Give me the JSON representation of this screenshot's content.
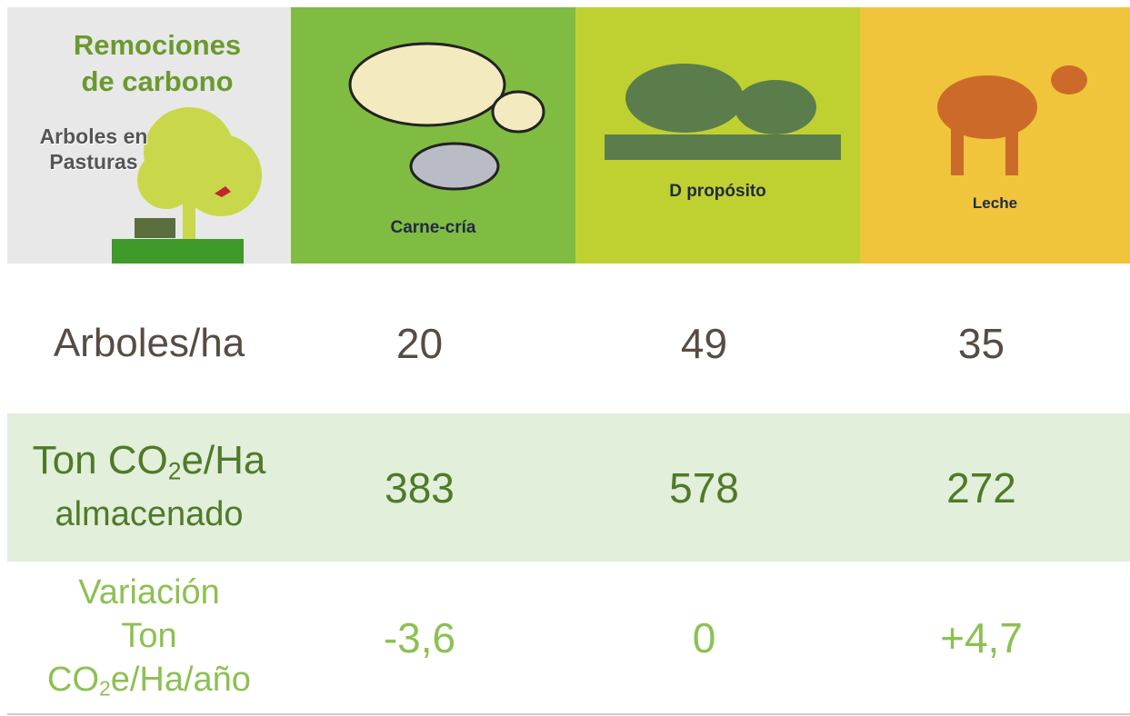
{
  "header": {
    "title": [
      "Remociones",
      "de carbono"
    ],
    "subtitle": [
      "Arboles en",
      "Pasturas"
    ],
    "columns": [
      "Carne-cría",
      "D propósito",
      "Leche"
    ]
  },
  "table": {
    "rows": [
      {
        "label": [
          "Arboles/ha"
        ],
        "values": [
          "20",
          "49",
          "35"
        ]
      },
      {
        "label": [
          "Ton CO",
          "2",
          "e/Ha",
          "almacenado"
        ],
        "values": [
          "383",
          "578",
          "272"
        ]
      },
      {
        "label": [
          "Variación",
          "Ton",
          "CO",
          "2",
          "e/Ha/año"
        ],
        "values": [
          "-3,6",
          "0",
          "+4,7"
        ]
      }
    ]
  }
}
